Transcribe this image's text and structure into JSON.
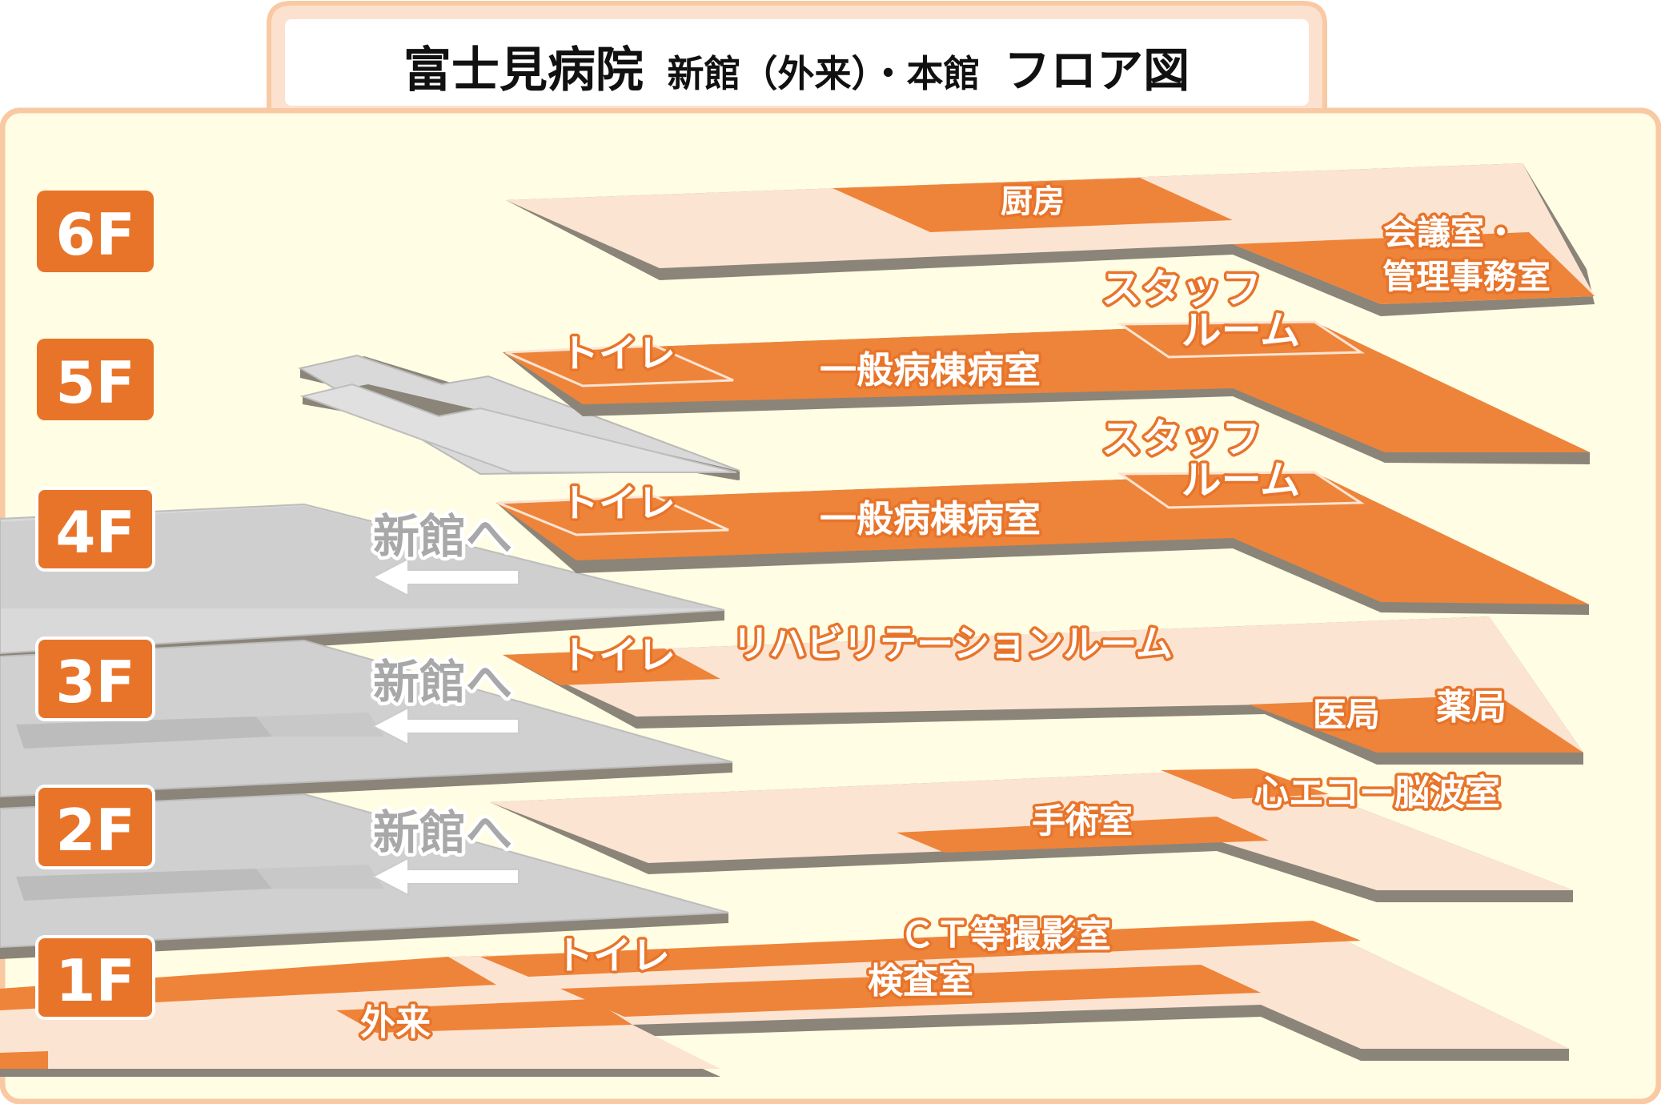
{
  "title": {
    "main": "富士見病院",
    "sub": "新館（外来）・本館",
    "tail": "フロア図"
  },
  "floors": [
    "6F",
    "5F",
    "4F",
    "3F",
    "2F",
    "1F"
  ],
  "rooms": {
    "f6_kitchen": "厨房",
    "f6_meeting_1": "会議室・",
    "f6_meeting_2": "管理事務室",
    "f5_staff_1": "スタッフ",
    "f5_staff_2": "ルーム",
    "f5_toilet": "トイレ",
    "f5_ward": "一般病棟病室",
    "f4_staff_1": "スタッフ",
    "f4_staff_2": "ルーム",
    "f4_toilet": "トイレ",
    "f4_ward": "一般病棟病室",
    "f3_toilet": "トイレ",
    "f3_rehab": "リハビリテーションルーム",
    "f3_doctors": "医局",
    "f3_pharmacy": "薬局",
    "f2_echo": "心エコー脳波室",
    "f2_surgery": "手術室",
    "f1_ct": "ＣＴ等撮影室",
    "f1_toilet": "トイレ",
    "f1_exam": "検査室",
    "f1_outpatient": "外来"
  },
  "to_shinkan": [
    "新館へ",
    "新館へ",
    "新館へ"
  ],
  "colors": {
    "frame_border": "#f8c9a3",
    "background": "#fffde3",
    "floor_badge": "#e8742a",
    "orange_room": "#ee843a",
    "pale_floor": "#fce4d2",
    "gray_shinkan": "#d9d9d9",
    "shadow": "#8b8478"
  }
}
